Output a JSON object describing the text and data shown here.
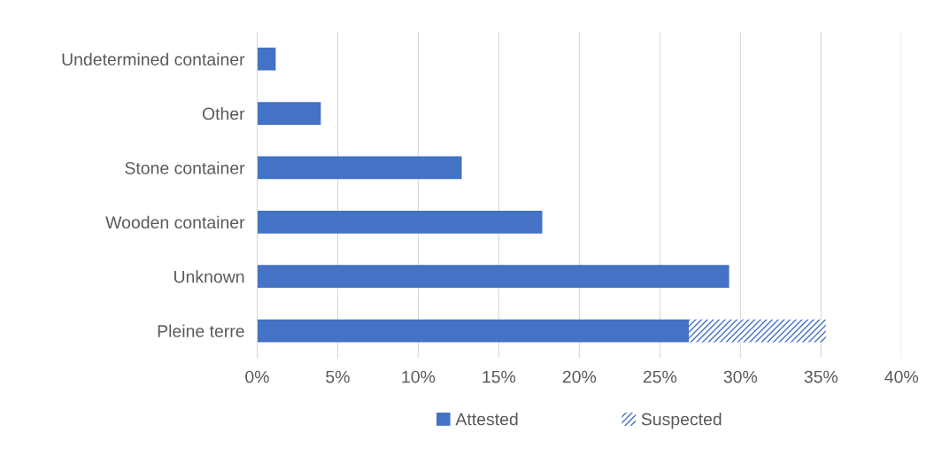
{
  "chart_data": {
    "type": "bar",
    "orientation": "horizontal",
    "stacked": true,
    "categories": [
      "Undetermined container",
      "Other",
      "Stone container",
      "Wooden container",
      "Unknown",
      "Pleine terre"
    ],
    "series": [
      {
        "name": "Attested",
        "color": "#4472c4",
        "values": [
          1.15,
          3.95,
          12.7,
          17.7,
          29.3,
          26.8
        ]
      },
      {
        "name": "Suspected",
        "color": "#4472c4",
        "values": [
          null,
          null,
          null,
          null,
          null,
          8.5
        ]
      }
    ],
    "xlim": [
      0,
      40
    ],
    "xticks": [
      {
        "value": 0,
        "label": "0%"
      },
      {
        "value": 5,
        "label": "5%"
      },
      {
        "value": 10,
        "label": "10%"
      },
      {
        "value": 15,
        "label": "15%"
      },
      {
        "value": 20,
        "label": "20%"
      },
      {
        "value": 25,
        "label": "25%"
      },
      {
        "value": 30,
        "label": "30%"
      },
      {
        "value": 35,
        "label": "35%"
      },
      {
        "value": 40,
        "label": "40%"
      }
    ],
    "grid": "x",
    "legend": "bottom"
  }
}
